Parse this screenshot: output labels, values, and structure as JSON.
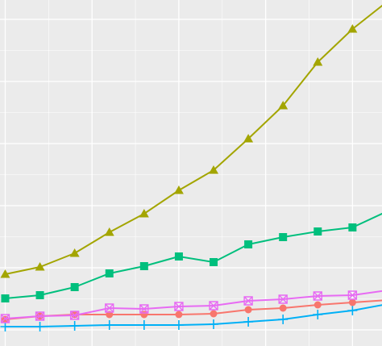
{
  "chart_data": {
    "type": "line",
    "title": "",
    "xlabel": "",
    "ylabel": "",
    "x": [
      0,
      1,
      2,
      3,
      4,
      5,
      6,
      7,
      8,
      9,
      10,
      11
    ],
    "xlim": [
      -0.15,
      10.85
    ],
    "ylim": [
      0,
      429
    ],
    "grid": true,
    "legend": "none",
    "colors": {
      "background": "#ebebeb",
      "grid": "#ffffff"
    },
    "series": [
      {
        "marker": "triangle",
        "color": "#a3a500",
        "values": [
          89.0,
          98.0,
          115.0,
          141.0,
          164.0,
          193.0,
          218.0,
          257.0,
          298.0,
          352.0,
          393.0,
          427.0
        ]
      },
      {
        "marker": "square",
        "color": "#00bf7d",
        "values": [
          59.0,
          63.0,
          73.0,
          90.0,
          99.0,
          111.0,
          104.0,
          126.0,
          135.0,
          142.0,
          147.0,
          167.0
        ]
      },
      {
        "marker": "square-cross",
        "color": "#e76bf3",
        "values": [
          34.0,
          37.0,
          38.0,
          47.0,
          46.0,
          49.0,
          50.0,
          56.0,
          58.0,
          62.0,
          63.0,
          69.0
        ]
      },
      {
        "marker": "circle",
        "color": "#f8766d",
        "values": [
          33.0,
          37.0,
          39.0,
          39.0,
          39.0,
          39.0,
          40.0,
          45.0,
          47.0,
          51.0,
          54.0,
          57.0
        ]
      },
      {
        "marker": "plus",
        "color": "#00b0f6",
        "values": [
          24.0,
          24.0,
          25.0,
          26.0,
          26.0,
          26.0,
          27.0,
          30.0,
          33.0,
          39.0,
          44.0,
          52.0
        ]
      }
    ]
  }
}
